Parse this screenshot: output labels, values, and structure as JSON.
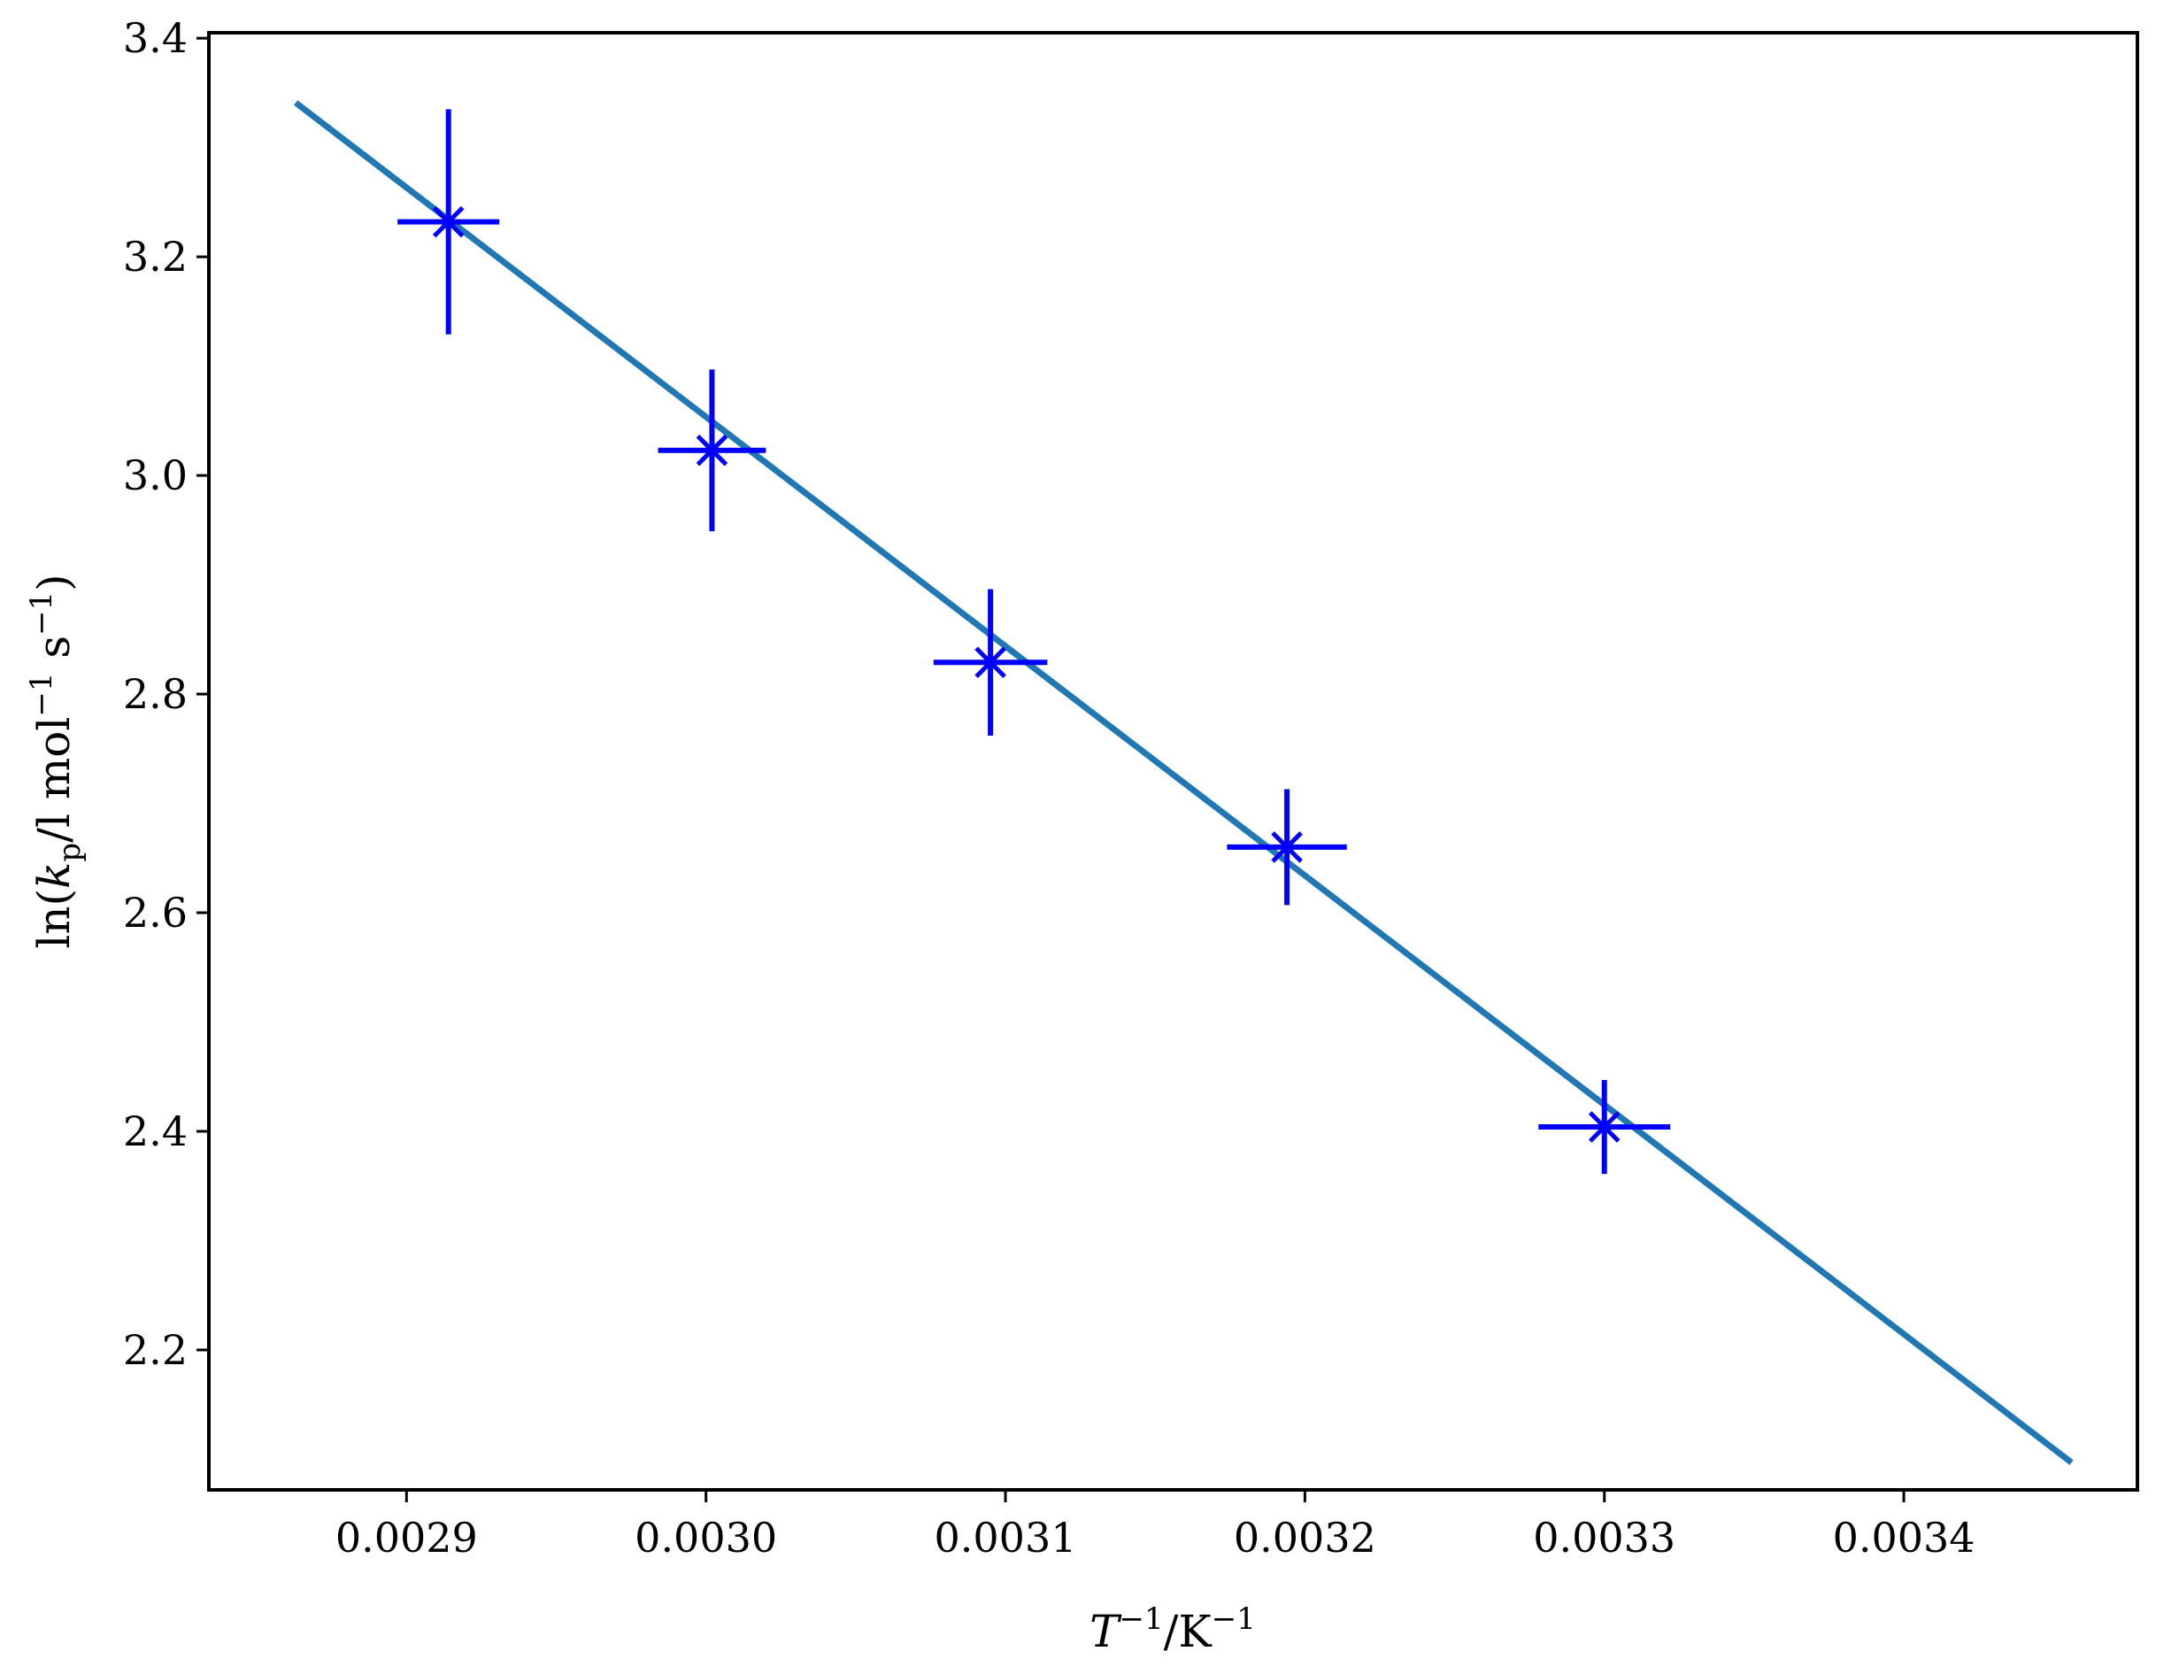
{
  "chart_data": {
    "type": "scatter",
    "title": "",
    "xlabel": {
      "var": "T",
      "sup1": "−1",
      "rest": "/K",
      "sup2": "−1"
    },
    "ylabel": {
      "pre": "ln(",
      "var": "k",
      "sub": "p",
      "mid1": "/l mol",
      "sup1": "−1",
      "mid2": " s",
      "sup2": "−1",
      "post": ")"
    },
    "xlim": [
      0.002834,
      0.003478
    ],
    "ylim": [
      2.072,
      3.405
    ],
    "x_ticks": [
      {
        "value": 0.0029,
        "label": "0.0029"
      },
      {
        "value": 0.003,
        "label": "0.0030"
      },
      {
        "value": 0.0031,
        "label": "0.0031"
      },
      {
        "value": 0.0032,
        "label": "0.0032"
      },
      {
        "value": 0.0033,
        "label": "0.0033"
      },
      {
        "value": 0.0034,
        "label": "0.0034"
      }
    ],
    "y_ticks": [
      {
        "value": 2.2,
        "label": "2.2"
      },
      {
        "value": 2.4,
        "label": "2.4"
      },
      {
        "value": 2.6,
        "label": "2.6"
      },
      {
        "value": 2.8,
        "label": "2.8"
      },
      {
        "value": 3.0,
        "label": "3.0"
      },
      {
        "value": 3.2,
        "label": "3.2"
      },
      {
        "value": 3.4,
        "label": "3.4"
      }
    ],
    "grid": false,
    "legend": "none",
    "series": [
      {
        "kind": "errorbar",
        "marker": "x",
        "color": "#0000ff",
        "points": [
          {
            "x": 0.002914,
            "y": 3.232,
            "xerr": 1.7e-05,
            "yerr_low": 0.103,
            "yerr_high": 0.103
          },
          {
            "x": 0.003002,
            "y": 3.023,
            "xerr": 1.8e-05,
            "yerr_low": 0.074,
            "yerr_high": 0.074
          },
          {
            "x": 0.003095,
            "y": 2.829,
            "xerr": 1.9e-05,
            "yerr_low": 0.067,
            "yerr_high": 0.067
          },
          {
            "x": 0.003194,
            "y": 2.66,
            "xerr": 2e-05,
            "yerr_low": 0.053,
            "yerr_high": 0.053
          },
          {
            "x": 0.0033,
            "y": 2.404,
            "xerr": 2.2e-05,
            "yerr_low": 0.043,
            "yerr_high": 0.043
          }
        ]
      },
      {
        "kind": "line",
        "color": "#1f77b4",
        "x": [
          0.002863,
          0.003456
        ],
        "y": [
          3.341,
          2.097
        ]
      }
    ]
  }
}
